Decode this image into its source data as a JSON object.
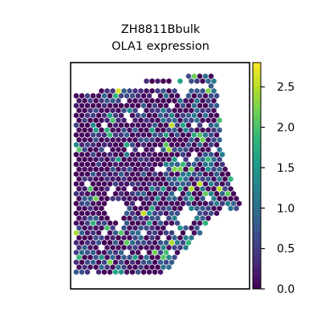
{
  "chart_data": {
    "type": "scatter",
    "title": "ZH8811Bbulk\nOLA1 expression",
    "title_lines": [
      "ZH8811Bbulk",
      "OLA1 expression"
    ],
    "xlabel": "",
    "ylabel": "",
    "x_ticks_visible": false,
    "y_ticks_visible": false,
    "grid": false,
    "point_shape": "hexagon",
    "colormap": "viridis",
    "colorbar": {
      "label": "",
      "range": [
        0.0,
        2.8
      ],
      "ticks": [
        0.0,
        0.5,
        1.0,
        1.5,
        2.0,
        2.5
      ],
      "tick_labels": [
        "0.0",
        "0.5",
        "1.0",
        "1.5",
        "2.0",
        "2.5"
      ],
      "placement": "right"
    },
    "viridis_stops": [
      "#440154",
      "#482878",
      "#3e4989",
      "#31688e",
      "#26828e",
      "#1f9e89",
      "#35b779",
      "#6ece58",
      "#b5de2b",
      "#fde725"
    ],
    "value_distribution_note": "",
    "notes": ""
  }
}
